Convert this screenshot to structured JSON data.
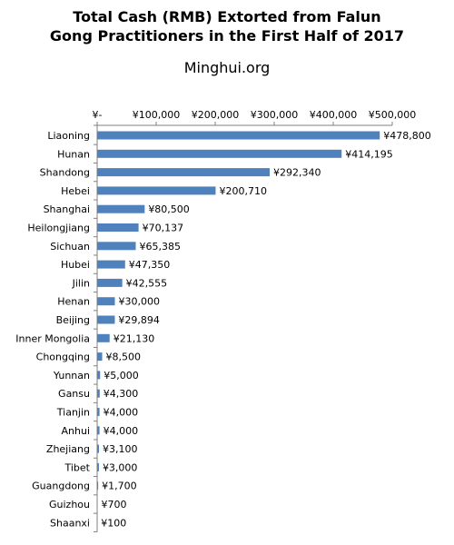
{
  "chart_data": {
    "type": "bar",
    "orientation": "horizontal",
    "title": "Total Cash (RMB) Extorted from Falun Gong Practitioners in the First Half of 2017",
    "title_lines": [
      "Total Cash (RMB) Extorted from Falun",
      "Gong Practitioners in the First Half of 2017"
    ],
    "subtitle": "Minghui.org",
    "categories": [
      "Liaoning",
      "Hunan",
      "Shandong",
      "Hebei",
      "Shanghai",
      "Heilongjiang",
      "Sichuan",
      "Hubei",
      "Jilin",
      "Henan",
      "Beijing",
      "Inner Mongolia",
      "Chongqing",
      "Yunnan",
      "Gansu",
      "Tianjin",
      "Anhui",
      "Zhejiang",
      "Tibet",
      "Guangdong",
      "Guizhou",
      "Shaanxi"
    ],
    "values": [
      478800,
      414195,
      292340,
      200710,
      80500,
      70137,
      65385,
      47350,
      42555,
      30000,
      29894,
      21130,
      8500,
      5000,
      4300,
      4000,
      4000,
      3100,
      3000,
      1700,
      700,
      100
    ],
    "data_labels": [
      "¥478,800",
      "¥414,195",
      "¥292,340",
      "¥200,710",
      "¥80,500",
      "¥70,137",
      "¥65,385",
      "¥47,350",
      "¥42,555",
      "¥30,000",
      "¥29,894",
      "¥21,130",
      "¥8,500",
      "¥5,000",
      "¥4,300",
      "¥4,000",
      "¥4,000",
      "¥3,100",
      "¥3,000",
      "¥1,700",
      "¥700",
      "¥100"
    ],
    "xlim": [
      0,
      500000
    ],
    "x_ticks": [
      0,
      100000,
      200000,
      300000,
      400000,
      500000
    ],
    "x_tick_labels": [
      "¥-",
      "¥100,000",
      "¥200,000",
      "¥300,000",
      "¥400,000",
      "¥500,000"
    ],
    "x_axis_position": "top",
    "grid": false,
    "bar_color": "#4f81bd"
  }
}
